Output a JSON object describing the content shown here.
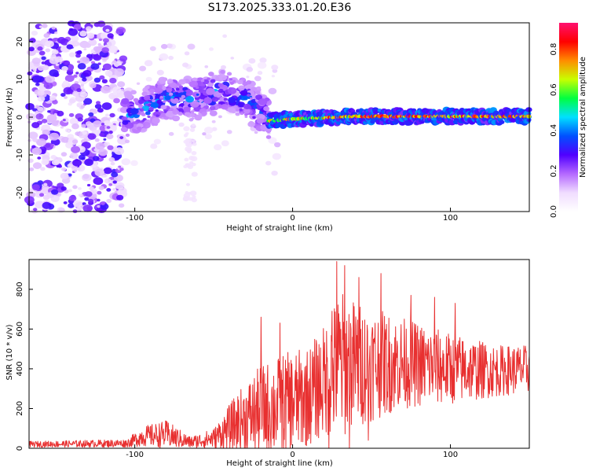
{
  "title": "S173.2025.333.01.20.E36",
  "chart_data": [
    {
      "type": "heatmap",
      "name": "spectrogram",
      "xlabel": "Height of straight line (km)",
      "ylabel": "Frequency (Hz)",
      "xlim": [
        -167,
        150
      ],
      "ylim": [
        -25,
        25
      ],
      "xticks": [
        -100,
        0,
        100
      ],
      "yticks": [
        -20,
        -10,
        0,
        10,
        20
      ],
      "colorbar": {
        "label": "Normalized spectral amplitude",
        "range": [
          0,
          0.93
        ],
        "ticks": [
          0.0,
          0.2,
          0.4,
          0.6,
          0.8
        ],
        "colors": [
          "#ffffff",
          "#f0dcff",
          "#b468ff",
          "#5000ff",
          "#0050ff",
          "#00e0ff",
          "#00ff40",
          "#c8ff00",
          "#ff8c00",
          "#ff0000",
          "#ff1070"
        ]
      },
      "features": [
        {
          "x_range": [
            -167,
            -107
          ],
          "y_range": [
            -25,
            25
          ],
          "desc": "scattered noise",
          "level": 0.08
        },
        {
          "x_range": [
            -107,
            -15
          ],
          "center": [
            -105,
            0
          ],
          "desc": "rising then falling band",
          "peak": [
            [
              -107,
              0
            ],
            [
              -95,
              2
            ],
            [
              -80,
              5
            ],
            [
              -60,
              5
            ],
            [
              -45,
              7
            ],
            [
              -30,
              5
            ],
            [
              -15,
              0
            ]
          ],
          "level": 0.3
        },
        {
          "x_range": [
            -15,
            150
          ],
          "center_hz": 0,
          "desc": "steady tone near 0 Hz",
          "level": 0.75
        }
      ]
    },
    {
      "type": "line",
      "name": "snr",
      "xlabel": "Height of straight line (km)",
      "ylabel": "SNR (10 * v/v)",
      "xlim": [
        -167,
        150
      ],
      "ylim": [
        0,
        950
      ],
      "xticks": [
        -100,
        0,
        100
      ],
      "yticks": [
        0,
        200,
        400,
        600,
        800
      ],
      "color": "#e83030",
      "envelope": [
        {
          "x": -167,
          "mean": 20,
          "amp": 15
        },
        {
          "x": -105,
          "mean": 25,
          "amp": 20
        },
        {
          "x": -95,
          "mean": 60,
          "amp": 50
        },
        {
          "x": -80,
          "mean": 70,
          "amp": 70
        },
        {
          "x": -65,
          "mean": 30,
          "amp": 30
        },
        {
          "x": -50,
          "mean": 50,
          "amp": 50
        },
        {
          "x": -35,
          "mean": 130,
          "amp": 150
        },
        {
          "x": -20,
          "mean": 190,
          "amp": 230
        },
        {
          "x": -5,
          "mean": 220,
          "amp": 260
        },
        {
          "x": 10,
          "mean": 260,
          "amp": 250
        },
        {
          "x": 20,
          "mean": 340,
          "amp": 280
        },
        {
          "x": 30,
          "mean": 420,
          "amp": 380
        },
        {
          "x": 45,
          "mean": 420,
          "amp": 300
        },
        {
          "x": 70,
          "mean": 430,
          "amp": 230
        },
        {
          "x": 100,
          "mean": 400,
          "amp": 180
        },
        {
          "x": 130,
          "mean": 390,
          "amp": 130
        },
        {
          "x": 150,
          "mean": 400,
          "amp": 120
        }
      ],
      "spikes": [
        {
          "x": 28,
          "y": 940
        },
        {
          "x": 33,
          "y": 920
        },
        {
          "x": 36,
          "y": 0
        },
        {
          "x": 42,
          "y": 860
        },
        {
          "x": 56,
          "y": 880
        },
        {
          "x": 25,
          "y": 690
        },
        {
          "x": 23,
          "y": 0
        },
        {
          "x": -8,
          "y": 630
        },
        {
          "x": -20,
          "y": 660
        },
        {
          "x": 75,
          "y": 770
        },
        {
          "x": 90,
          "y": 760
        },
        {
          "x": 103,
          "y": 730
        },
        {
          "x": 48,
          "y": 40
        }
      ]
    }
  ]
}
